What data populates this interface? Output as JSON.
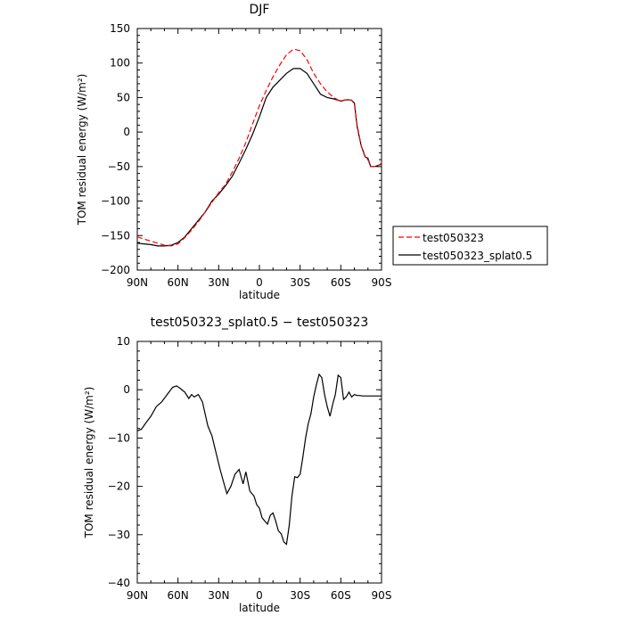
{
  "chart_data": [
    {
      "type": "line",
      "title": "DJF",
      "xlabel": "latitude",
      "ylabel": "TOM residual energy (W/m²)",
      "x_ticks": [
        "90N",
        "60N",
        "30N",
        "0",
        "30S",
        "60S",
        "90S"
      ],
      "x_tick_values": [
        -90,
        -60,
        -30,
        0,
        30,
        60,
        90
      ],
      "xlim": [
        -90,
        90
      ],
      "ylim": [
        -200,
        150
      ],
      "y_ticks": [
        150,
        100,
        50,
        0,
        -50,
        -100,
        -150,
        -200
      ],
      "grid": false,
      "legend": "right-outside",
      "series": [
        {
          "name": "test050323",
          "color": "#ff0000",
          "style": "dashed",
          "x": [
            -90,
            -85,
            -80,
            -75,
            -70,
            -65,
            -60,
            -55,
            -50,
            -45,
            -40,
            -35,
            -30,
            -25,
            -20,
            -15,
            -10,
            -5,
            0,
            5,
            10,
            15,
            20,
            25,
            30,
            35,
            40,
            45,
            50,
            55,
            60,
            62,
            65,
            68,
            70,
            72,
            75,
            78,
            80,
            82,
            85,
            88,
            90
          ],
          "y": [
            -152,
            -155,
            -158,
            -161,
            -164,
            -165,
            -162,
            -153,
            -142,
            -130,
            -116,
            -102,
            -88,
            -76,
            -58,
            -38,
            -15,
            12,
            38,
            60,
            80,
            97,
            112,
            120,
            118,
            105,
            85,
            70,
            58,
            50,
            44,
            46,
            47,
            46,
            40,
            10,
            -20,
            -37,
            -40,
            -50,
            -50,
            -48,
            -45
          ]
        },
        {
          "name": "test050323_splat0.5",
          "color": "#000000",
          "style": "solid",
          "x": [
            -90,
            -85,
            -80,
            -75,
            -70,
            -65,
            -60,
            -55,
            -50,
            -45,
            -40,
            -35,
            -30,
            -25,
            -20,
            -15,
            -10,
            -5,
            0,
            5,
            10,
            15,
            20,
            25,
            30,
            35,
            40,
            45,
            50,
            55,
            60,
            62,
            65,
            68,
            70,
            72,
            75,
            78,
            80,
            82,
            85,
            88,
            90
          ],
          "y": [
            -161,
            -162,
            -163,
            -165,
            -165,
            -164,
            -160,
            -152,
            -140,
            -128,
            -116,
            -100,
            -90,
            -78,
            -64,
            -45,
            -25,
            -3,
            22,
            50,
            65,
            75,
            85,
            92,
            92,
            85,
            70,
            55,
            50,
            48,
            45,
            46,
            47,
            46,
            42,
            8,
            -20,
            -36,
            -38,
            -50,
            -50,
            -48,
            -46
          ]
        }
      ]
    },
    {
      "type": "line",
      "title": "test050323_splat0.5 − test050323",
      "xlabel": "latitude",
      "ylabel": "TOM residual energy (W/m²)",
      "x_ticks": [
        "90N",
        "60N",
        "30N",
        "0",
        "30S",
        "60S",
        "90S"
      ],
      "x_tick_values": [
        -90,
        -60,
        -30,
        0,
        30,
        60,
        90
      ],
      "xlim": [
        -90,
        90
      ],
      "ylim": [
        -40,
        10
      ],
      "y_ticks": [
        10,
        0,
        -10,
        -20,
        -30,
        -40
      ],
      "grid": false,
      "series": [
        {
          "color": "#000000",
          "style": "solid",
          "x": [
            -90,
            -87,
            -84,
            -80,
            -76,
            -72,
            -68,
            -64,
            -61,
            -58,
            -55,
            -52,
            -50,
            -48,
            -45,
            -42,
            -40,
            -38,
            -35,
            -32,
            -29,
            -26,
            -24,
            -21,
            -18,
            -15,
            -12,
            -10,
            -7,
            -4,
            -2,
            0,
            2,
            4,
            6,
            8,
            10,
            12,
            14,
            16,
            18,
            20,
            22,
            24,
            26,
            28,
            30,
            32,
            34,
            36,
            38,
            40,
            42,
            44,
            46,
            48,
            50,
            52,
            54,
            56,
            58,
            60,
            62,
            64,
            66,
            68,
            70,
            72,
            74,
            76,
            78,
            80,
            82,
            84,
            86,
            88,
            90
          ],
          "y": [
            -8.5,
            -8.2,
            -7,
            -5.5,
            -3.5,
            -2.5,
            -1,
            0.5,
            0.8,
            0.2,
            -0.5,
            -1.8,
            -1,
            -1.5,
            -1,
            -2.5,
            -5,
            -7.5,
            -9.5,
            -13,
            -16.5,
            -19.5,
            -21.5,
            -20,
            -17.5,
            -16.5,
            -19.5,
            -17,
            -21,
            -22,
            -23.8,
            -24.5,
            -26.5,
            -27.2,
            -27.8,
            -26,
            -25.5,
            -27.2,
            -29.2,
            -29.8,
            -31.5,
            -32,
            -28,
            -22,
            -18,
            -18.2,
            -17.5,
            -14,
            -10,
            -7,
            -5,
            -1.5,
            1,
            3.2,
            2.5,
            -1,
            -3.5,
            -5.5,
            -3,
            -1,
            3,
            2.5,
            -2,
            -1.5,
            -0.5,
            -1.5,
            -1,
            -1.2,
            -1.2,
            -1.3,
            -1.3,
            -1.3,
            -1.3,
            -1.3,
            -1.3,
            -1.3,
            -1.3
          ]
        }
      ]
    }
  ]
}
